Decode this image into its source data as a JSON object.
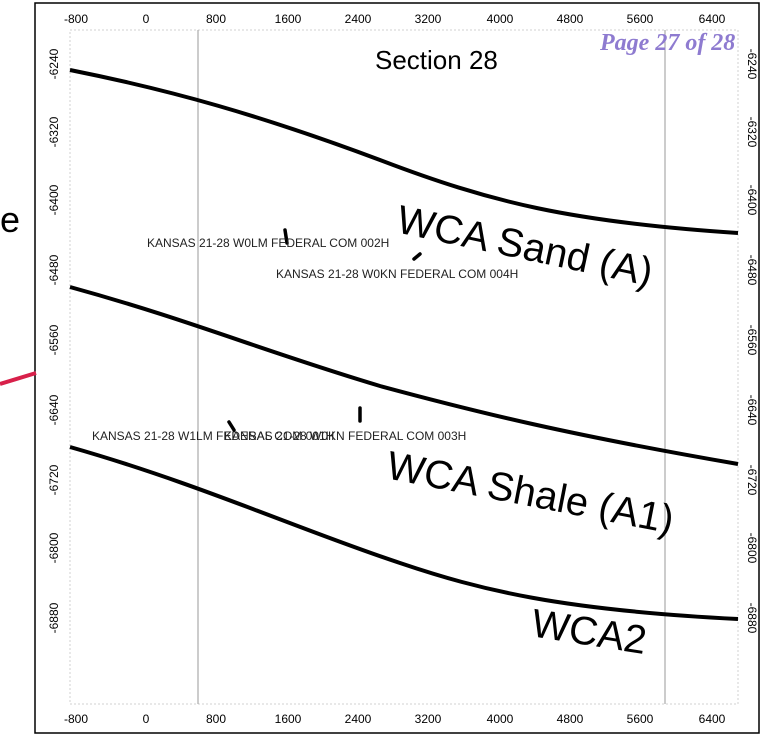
{
  "header": {
    "section_title": "Section 28",
    "page_indicator": "Page 27 of 28"
  },
  "left_fragment": {
    "edge_letter": "e"
  },
  "axes": {
    "x_ticks": [
      "-800",
      "0",
      "800",
      "1600",
      "2400",
      "3200",
      "4000",
      "4800",
      "5600",
      "6400"
    ],
    "y_ticks": [
      "-6240",
      "-6320",
      "-6400",
      "-6480",
      "-6560",
      "-6640",
      "-6720",
      "-6800",
      "-6880"
    ]
  },
  "horizons": {
    "sand_label": "WCA Sand (A)",
    "shale_label": "WCA Shale (A1)",
    "wca2_label": "WCA2"
  },
  "wells": [
    {
      "name": "KANSAS 21-28 W0LM FEDERAL COM 002H"
    },
    {
      "name": "KANSAS 21-28 W0KN FEDERAL COM 004H"
    },
    {
      "name": "KANSAS 21-28 W1LM FEDERAL COM 001H"
    },
    {
      "name": "KANSAS 21-28 W0KN FEDERAL COM 003H"
    }
  ],
  "colors": {
    "horizon_line": "#000000",
    "border": "#000000",
    "page_indicator": "#8e7bd0",
    "edge_line": "#d8204a",
    "grid_line": "#9a9a9a"
  }
}
